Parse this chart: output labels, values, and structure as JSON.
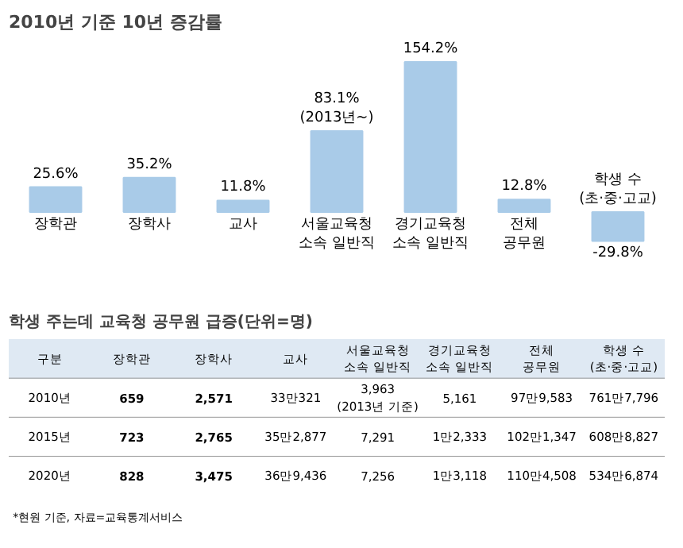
{
  "chart_data": {
    "type": "bar",
    "title": "2010년 기준 10년 증감률",
    "subtitle": "학생 주는데 교육청 공무원 급증(단위=명)",
    "categories": [
      "장학관",
      "장학사",
      "교사",
      "서울교육청\n소속 일반직",
      "경기교육청\n소속 일반직",
      "전체\n공무원",
      "학생 수\n(초·중·고교)"
    ],
    "values": [
      25.6,
      35.2,
      11.8,
      83.1,
      154.2,
      12.8,
      -29.8
    ],
    "value_labels": [
      "25.6%",
      "35.2%",
      "11.8%",
      "83.1%\n(2013년~)",
      "154.2%",
      "12.8%",
      "-29.8%"
    ],
    "color": "#a9cbe8",
    "grid": false,
    "annotations": [
      "구분",
      "장학관",
      "장학사",
      "교사",
      "서울교육청\n소속 일반직",
      "경기교육청\n소속 일반직",
      "전체\n공무원",
      "학생 수\n(초·중·고교)",
      "2010년",
      "659",
      "2,571",
      "33만321",
      "3,963\n(2013년 기준)",
      "5,161",
      "97만9,583",
      "761만7,796",
      "2015년",
      "723",
      "2,765",
      "35만2,877",
      "7,291",
      "1만2,333",
      "102만1,347",
      "608만8,827",
      "2020년",
      "828",
      "3,475",
      "36만9,436",
      "7,256",
      "1만3,118",
      "110만4,508",
      "534만6,874",
      "*현원 기준, 자료=교육통계서비스"
    ]
  }
}
